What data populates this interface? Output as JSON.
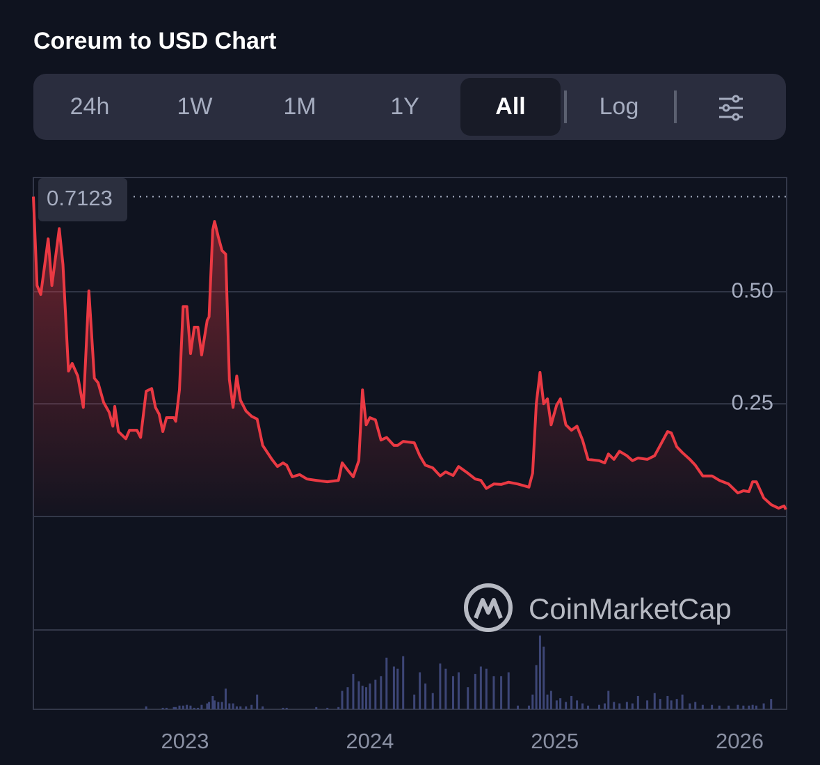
{
  "header": {
    "title": "Coreum to USD Chart"
  },
  "tabs": {
    "items": [
      "24h",
      "1W",
      "1M",
      "1Y",
      "All",
      "Log"
    ],
    "selected": 4
  },
  "watermark": "CoinMarketCap",
  "chart_data": {
    "type": "line",
    "x": [
      2022.18,
      2022.2,
      2022.22,
      2022.26,
      2022.28,
      2022.32,
      2022.34,
      2022.37,
      2022.39,
      2022.42,
      2022.45,
      2022.48,
      2022.51,
      2022.53,
      2022.56,
      2022.59,
      2022.61,
      2022.62,
      2022.64,
      2022.68,
      2022.7,
      2022.74,
      2022.76,
      2022.79,
      2022.82,
      2022.84,
      2022.86,
      2022.88,
      2022.9,
      2022.94,
      2022.95,
      2022.97,
      2022.99,
      2023.01,
      2023.03,
      2023.05,
      2023.07,
      2023.09,
      2023.12,
      2023.13,
      2023.15,
      2023.16,
      2023.18,
      2023.2,
      2023.22,
      2023.24,
      2023.26,
      2023.28,
      2023.3,
      2023.33,
      2023.36,
      2023.39,
      2023.42,
      2023.47,
      2023.5,
      2023.53,
      2023.55,
      2023.58,
      2023.62,
      2023.66,
      2023.71,
      2023.77,
      2023.83,
      2023.85,
      2023.88,
      2023.91,
      2023.94,
      2023.96,
      2023.98,
      2024.0,
      2024.03,
      2024.06,
      2024.09,
      2024.13,
      2024.15,
      2024.18,
      2024.24,
      2024.27,
      2024.3,
      2024.34,
      2024.38,
      2024.41,
      2024.45,
      2024.48,
      2024.53,
      2024.57,
      2024.6,
      2024.63,
      2024.67,
      2024.71,
      2024.75,
      2024.8,
      2024.86,
      2024.88,
      2024.9,
      2024.92,
      2024.94,
      2024.96,
      2024.98,
      2025.01,
      2025.03,
      2025.06,
      2025.09,
      2025.12,
      2025.15,
      2025.18,
      2025.24,
      2025.27,
      2025.29,
      2025.32,
      2025.35,
      2025.39,
      2025.42,
      2025.45,
      2025.5,
      2025.54,
      2025.57,
      2025.61,
      2025.63,
      2025.66,
      2025.69,
      2025.73,
      2025.76,
      2025.8,
      2025.85,
      2025.89,
      2025.94,
      2025.99,
      2026.02,
      2026.05,
      2026.07,
      2026.09,
      2026.13,
      2026.17,
      2026.21,
      2026.24,
      2026.25
    ],
    "series": [
      {
        "color": "#ea3943",
        "values": [
          0.7123,
          0.514,
          0.494,
          0.618,
          0.514,
          0.641,
          0.561,
          0.323,
          0.34,
          0.312,
          0.242,
          0.502,
          0.307,
          0.297,
          0.253,
          0.231,
          0.2,
          0.244,
          0.188,
          0.172,
          0.191,
          0.191,
          0.175,
          0.278,
          0.284,
          0.242,
          0.227,
          0.188,
          0.219,
          0.219,
          0.211,
          0.281,
          0.467,
          0.467,
          0.362,
          0.421,
          0.421,
          0.359,
          0.436,
          0.444,
          0.638,
          0.657,
          0.623,
          0.592,
          0.584,
          0.304,
          0.242,
          0.312,
          0.258,
          0.234,
          0.222,
          0.216,
          0.157,
          0.126,
          0.11,
          0.118,
          0.113,
          0.087,
          0.092,
          0.082,
          0.079,
          0.076,
          0.079,
          0.118,
          0.102,
          0.087,
          0.123,
          0.281,
          0.203,
          0.219,
          0.214,
          0.169,
          0.175,
          0.157,
          0.157,
          0.166,
          0.163,
          0.134,
          0.113,
          0.107,
          0.089,
          0.098,
          0.09,
          0.11,
          0.095,
          0.082,
          0.079,
          0.061,
          0.071,
          0.07,
          0.075,
          0.071,
          0.064,
          0.095,
          0.25,
          0.32,
          0.25,
          0.261,
          0.203,
          0.247,
          0.261,
          0.203,
          0.191,
          0.2,
          0.169,
          0.126,
          0.123,
          0.118,
          0.138,
          0.126,
          0.144,
          0.134,
          0.123,
          0.129,
          0.126,
          0.134,
          0.157,
          0.188,
          0.185,
          0.154,
          0.141,
          0.126,
          0.113,
          0.089,
          0.089,
          0.079,
          0.071,
          0.051,
          0.056,
          0.054,
          0.076,
          0.076,
          0.04,
          0.025,
          0.017,
          0.022,
          0.014
        ]
      }
    ],
    "volume": {
      "color": "#3d4676",
      "vlim": [
        0,
        100
      ],
      "values": [
        0,
        0,
        0,
        0,
        0,
        0,
        0,
        0,
        0,
        0,
        0,
        0,
        0,
        0,
        0,
        0,
        0,
        0,
        0,
        0,
        0,
        0,
        0,
        4,
        0,
        0,
        0,
        2,
        2,
        3,
        3,
        5,
        5,
        6,
        5,
        2,
        2,
        6,
        8,
        10,
        18,
        12,
        10,
        10,
        28,
        8,
        8,
        4,
        4,
        4,
        6,
        20,
        4,
        0,
        0,
        2,
        2,
        0,
        0,
        0,
        3,
        2,
        3,
        25,
        30,
        48,
        38,
        32,
        30,
        35,
        40,
        45,
        70,
        58,
        55,
        72,
        20,
        50,
        35,
        22,
        62,
        55,
        45,
        50,
        30,
        48,
        58,
        55,
        45,
        45,
        50,
        5,
        5,
        20,
        60,
        100,
        85,
        20,
        25,
        12,
        15,
        10,
        18,
        12,
        8,
        5,
        6,
        8,
        25,
        10,
        8,
        10,
        8,
        18,
        12,
        22,
        14,
        18,
        12,
        14,
        20,
        8,
        10,
        6,
        6,
        5,
        5,
        6,
        5,
        5,
        6,
        5,
        8,
        14,
        0,
        0,
        0
      ]
    },
    "high_marker": 0.7123,
    "xlim": [
      2022.18,
      2026.25
    ],
    "xticks": [
      2023,
      2024,
      2025,
      2026
    ],
    "ylim": [
      0,
      0.755
    ],
    "yticks": [
      {
        "value": 0.25,
        "label": "0.25"
      },
      {
        "value": 0.5,
        "label": "0.50"
      }
    ],
    "grid": true
  }
}
